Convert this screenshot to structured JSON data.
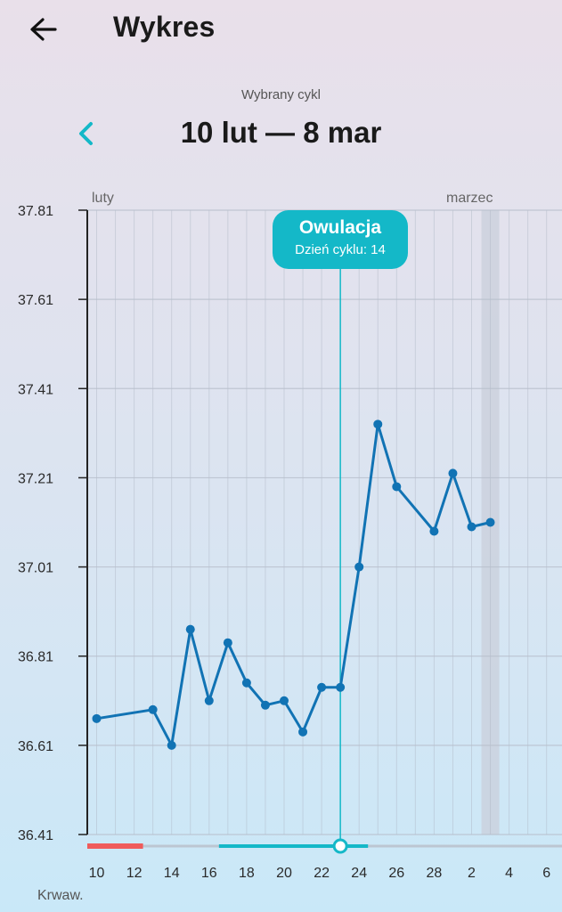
{
  "header": {
    "title": "Wykres",
    "back_icon": "arrow-left-icon"
  },
  "cycle": {
    "caption": "Wybrany cykl",
    "range": "10 lut — 8 mar",
    "prev_icon": "chevron-left-icon",
    "accent": "#14b8c8"
  },
  "ovulation_popup": {
    "title": "Owulacja",
    "subtitle": "Dzień cyklu: 14"
  },
  "months": {
    "left": "luty",
    "right": "marzec"
  },
  "bleeding_row": {
    "label": "Krwaw."
  },
  "colors": {
    "line": "#1173b4",
    "accent": "#14b8c8",
    "period": "#ef5b5b",
    "blood": "#e0313a",
    "discharge": "#7b5ea7",
    "highlight_column": "#c9cfdb"
  },
  "chart_data": {
    "type": "line",
    "title": "",
    "xlabel": "",
    "ylabel": "",
    "ylim": [
      36.41,
      37.81
    ],
    "yticks": [
      "36.41",
      "36.61",
      "36.81",
      "37.01",
      "37.21",
      "37.41",
      "37.61",
      "37.81"
    ],
    "x_day_range": [
      10,
      35
    ],
    "xticks": [
      {
        "day": 10,
        "label": "10"
      },
      {
        "day": 12,
        "label": "12"
      },
      {
        "day": 14,
        "label": "14"
      },
      {
        "day": 16,
        "label": "16"
      },
      {
        "day": 18,
        "label": "18"
      },
      {
        "day": 20,
        "label": "20"
      },
      {
        "day": 22,
        "label": "22"
      },
      {
        "day": 24,
        "label": "24"
      },
      {
        "day": 26,
        "label": "26"
      },
      {
        "day": 28,
        "label": "28"
      },
      {
        "day": 30,
        "label": "2"
      },
      {
        "day": 32,
        "label": "4"
      },
      {
        "day": 34,
        "label": "6"
      }
    ],
    "series": [
      {
        "points": [
          [
            10,
            36.67
          ],
          [
            13,
            36.69
          ],
          [
            14,
            36.61
          ],
          [
            15,
            36.87
          ],
          [
            16,
            36.71
          ],
          [
            17,
            36.84
          ],
          [
            18,
            36.75
          ],
          [
            19,
            36.7
          ],
          [
            20,
            36.71
          ],
          [
            21,
            36.64
          ],
          [
            22,
            36.74
          ],
          [
            23,
            36.74
          ],
          [
            24,
            37.01
          ],
          [
            25,
            37.33
          ],
          [
            26,
            37.19
          ],
          [
            28,
            37.09
          ],
          [
            29,
            37.22
          ],
          [
            30,
            37.1
          ],
          [
            31,
            37.11
          ]
        ]
      }
    ],
    "ovulation_day": 23,
    "highlight_day": 31,
    "period_days": [
      10,
      12
    ],
    "fertile_days": [
      17,
      24
    ],
    "bleeding_markers": [
      {
        "day": 10,
        "type": "drop"
      },
      {
        "day": 13,
        "type": "blood"
      },
      {
        "day": 14,
        "type": "blood"
      },
      {
        "day": 15,
        "type": "drop"
      },
      {
        "day": 16,
        "type": "blood"
      },
      {
        "day": 17,
        "type": "blood"
      },
      {
        "day": 18,
        "type": "drop"
      },
      {
        "day": 19,
        "type": "funnel"
      },
      {
        "day": 20,
        "type": "funnel"
      },
      {
        "day": 21,
        "type": "funnel"
      },
      {
        "day": 22,
        "type": "funnel-light"
      },
      {
        "day": 23,
        "type": "funnel-light"
      },
      {
        "day": 24,
        "type": "funnel-light"
      },
      {
        "day": 25,
        "type": "funnel"
      },
      {
        "day": 26,
        "type": "drop"
      },
      {
        "day": 27,
        "type": "drop"
      },
      {
        "day": 28,
        "type": "funnel"
      },
      {
        "day": 29,
        "type": "drop"
      },
      {
        "day": 30,
        "type": "drop"
      },
      {
        "day": 31,
        "type": "drop"
      }
    ]
  }
}
